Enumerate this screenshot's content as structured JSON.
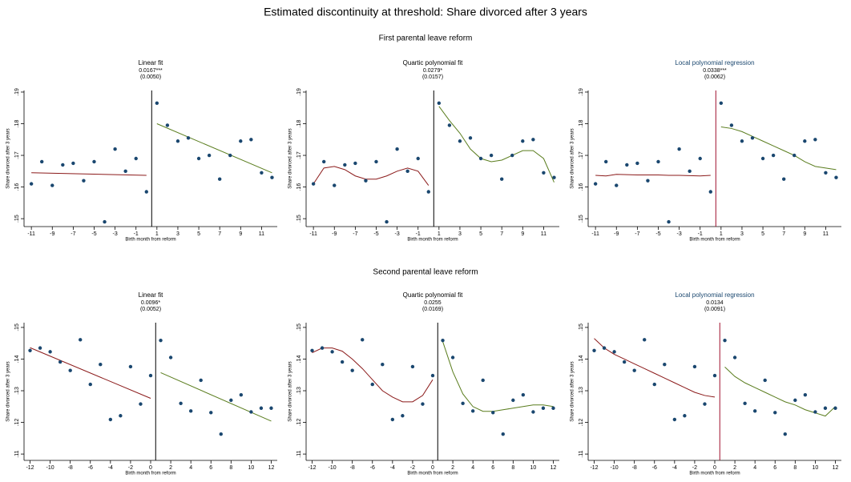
{
  "title": "Estimated discontinuity at threshold: Share divorced after 3 years",
  "sections": [
    "First parental leave reform",
    "Second parental leave reform"
  ],
  "chart_data": [
    {
      "type": "scatter",
      "title": "Linear fit",
      "title_color": "#000000",
      "estimate": "0.0167***",
      "std_error": "(0.0050)",
      "xlabel": "Birth month from reform",
      "ylabel": "Share divorced after 3 years",
      "x": [
        -11,
        -10,
        -9,
        -8,
        -7,
        -6,
        -5,
        -4,
        -3,
        -2,
        -1,
        0,
        1,
        2,
        3,
        4,
        5,
        6,
        7,
        8,
        9,
        10,
        11,
        12
      ],
      "values": [
        0.161,
        0.168,
        0.1605,
        0.167,
        0.1675,
        0.162,
        0.168,
        0.149,
        0.172,
        0.165,
        0.169,
        0.1585,
        0.1865,
        0.1795,
        0.1745,
        0.1755,
        0.169,
        0.17,
        0.1625,
        0.17,
        0.1745,
        0.175,
        0.1645,
        0.163
      ],
      "color": "#1a476f",
      "threshold": 0.5,
      "threshold_color": "#000000",
      "fits": [
        {
          "x": [
            -11,
            0
          ],
          "values": [
            0.1645,
            0.1637
          ],
          "color": "#8b1a1a"
        },
        {
          "x": [
            1,
            12
          ],
          "values": [
            0.18,
            0.1645
          ],
          "color": "#5a7d1e"
        }
      ],
      "xlim": [
        -11.7,
        12.5
      ],
      "ylim": [
        0.1475,
        0.1905
      ],
      "xticks": [
        -11,
        -9,
        -7,
        -5,
        -3,
        -1,
        1,
        3,
        5,
        7,
        9,
        11
      ],
      "yticks": [
        {
          "value": 0.15,
          "label": ".15"
        },
        {
          "value": 0.16,
          "label": ".16"
        },
        {
          "value": 0.17,
          "label": ".17"
        },
        {
          "value": 0.18,
          "label": ".18"
        },
        {
          "value": 0.19,
          "label": ".19"
        }
      ]
    },
    {
      "type": "scatter",
      "title": "Quartic polynomial fit",
      "title_color": "#000000",
      "estimate": "0.0279*",
      "std_error": "(0.0157)",
      "xlabel": "Birth month from reform",
      "ylabel": "Share divorced after 3 years",
      "x": [
        -11,
        -10,
        -9,
        -8,
        -7,
        -6,
        -5,
        -4,
        -3,
        -2,
        -1,
        0,
        1,
        2,
        3,
        4,
        5,
        6,
        7,
        8,
        9,
        10,
        11,
        12
      ],
      "values": [
        0.161,
        0.168,
        0.1605,
        0.167,
        0.1675,
        0.162,
        0.168,
        0.149,
        0.172,
        0.165,
        0.169,
        0.1585,
        0.1865,
        0.1795,
        0.1745,
        0.1755,
        0.169,
        0.17,
        0.1625,
        0.17,
        0.1745,
        0.175,
        0.1645,
        0.163
      ],
      "color": "#1a476f",
      "threshold": 0.5,
      "threshold_color": "#000000",
      "fits": [
        {
          "x": [
            -11,
            -10,
            -9,
            -8,
            -7,
            -6,
            -5,
            -4,
            -3,
            -2,
            -1,
            0
          ],
          "values": [
            0.161,
            0.166,
            0.1665,
            0.1655,
            0.1635,
            0.1625,
            0.1625,
            0.1635,
            0.165,
            0.166,
            0.165,
            0.1605
          ],
          "color": "#8b1a1a"
        },
        {
          "x": [
            1,
            2,
            3,
            4,
            5,
            6,
            7,
            8,
            9,
            10,
            11,
            12
          ],
          "values": [
            0.1855,
            0.181,
            0.177,
            0.172,
            0.169,
            0.168,
            0.1685,
            0.17,
            0.1715,
            0.1715,
            0.169,
            0.1615
          ],
          "color": "#5a7d1e"
        }
      ],
      "xlim": [
        -11.7,
        12.5
      ],
      "ylim": [
        0.1475,
        0.1905
      ],
      "xticks": [
        -11,
        -9,
        -7,
        -5,
        -3,
        -1,
        1,
        3,
        5,
        7,
        9,
        11
      ],
      "yticks": [
        {
          "value": 0.15,
          "label": ".15"
        },
        {
          "value": 0.16,
          "label": ".16"
        },
        {
          "value": 0.17,
          "label": ".17"
        },
        {
          "value": 0.18,
          "label": ".18"
        },
        {
          "value": 0.19,
          "label": ".19"
        }
      ]
    },
    {
      "type": "scatter",
      "title": "Local polynomial regression",
      "title_color": "#1a476f",
      "estimate": "0.0338***",
      "std_error": "(0.0062)",
      "xlabel": "Birth month from reform",
      "ylabel": "Share divorced after 3 years",
      "x": [
        -11,
        -10,
        -9,
        -8,
        -7,
        -6,
        -5,
        -4,
        -3,
        -2,
        -1,
        0,
        1,
        2,
        3,
        4,
        5,
        6,
        7,
        8,
        9,
        10,
        11,
        12
      ],
      "values": [
        0.161,
        0.168,
        0.1605,
        0.167,
        0.1675,
        0.162,
        0.168,
        0.149,
        0.172,
        0.165,
        0.169,
        0.1585,
        0.1865,
        0.1795,
        0.1745,
        0.1755,
        0.169,
        0.17,
        0.1625,
        0.17,
        0.1745,
        0.175,
        0.1645,
        0.163
      ],
      "color": "#1a476f",
      "threshold": 0.5,
      "threshold_color": "#a0102e",
      "fits": [
        {
          "x": [
            -11,
            -10,
            -9,
            -8,
            -7,
            -6,
            -5,
            -4,
            -3,
            -2,
            -1,
            0
          ],
          "values": [
            0.1637,
            0.1635,
            0.164,
            0.1639,
            0.1638,
            0.1638,
            0.1638,
            0.1637,
            0.1637,
            0.1636,
            0.1635,
            0.1637
          ],
          "color": "#8b1a1a"
        },
        {
          "x": [
            1,
            2,
            3,
            4,
            5,
            6,
            7,
            8,
            9,
            10,
            11,
            12
          ],
          "values": [
            0.179,
            0.1785,
            0.1775,
            0.176,
            0.1745,
            0.173,
            0.1715,
            0.17,
            0.168,
            0.1665,
            0.166,
            0.1655
          ],
          "color": "#5a7d1e"
        }
      ],
      "xlim": [
        -11.7,
        12.5
      ],
      "ylim": [
        0.1475,
        0.1905
      ],
      "xticks": [
        -11,
        -9,
        -7,
        -5,
        -3,
        -1,
        1,
        3,
        5,
        7,
        9,
        11
      ],
      "yticks": [
        {
          "value": 0.15,
          "label": ".15"
        },
        {
          "value": 0.16,
          "label": ".16"
        },
        {
          "value": 0.17,
          "label": ".17"
        },
        {
          "value": 0.18,
          "label": ".18"
        },
        {
          "value": 0.19,
          "label": ".19"
        }
      ]
    },
    {
      "type": "scatter",
      "title": "Linear fit",
      "title_color": "#000000",
      "estimate": "0.0096*",
      "std_error": "(0.0052)",
      "xlabel": "Birth month from reform",
      "ylabel": "Share divorced after 3 years",
      "x": [
        -12,
        -11,
        -10,
        -9,
        -8,
        -7,
        -6,
        -5,
        -4,
        -3,
        -2,
        -1,
        0,
        1,
        2,
        3,
        4,
        5,
        6,
        7,
        8,
        9,
        10,
        11,
        12
      ],
      "values": [
        0.1427,
        0.1435,
        0.1423,
        0.1391,
        0.1364,
        0.1461,
        0.132,
        0.1383,
        0.1209,
        0.1221,
        0.1376,
        0.1258,
        0.1348,
        0.1459,
        0.1405,
        0.126,
        0.1236,
        0.1333,
        0.1231,
        0.1163,
        0.127,
        0.1287,
        0.1233,
        0.1245,
        0.1245
      ],
      "color": "#1a476f",
      "threshold": 0.5,
      "threshold_color": "#000000",
      "fits": [
        {
          "x": [
            -12,
            0
          ],
          "values": [
            0.1436,
            0.1276
          ],
          "color": "#8b1a1a"
        },
        {
          "x": [
            1,
            12
          ],
          "values": [
            0.1357,
            0.1204
          ],
          "color": "#5a7d1e"
        }
      ],
      "xlim": [
        -12.6,
        12.6
      ],
      "ylim": [
        0.108,
        0.1515
      ],
      "xticks": [
        -12,
        -10,
        -8,
        -6,
        -4,
        -2,
        0,
        2,
        4,
        6,
        8,
        10,
        12
      ],
      "yticks": [
        {
          "value": 0.11,
          "label": ".11"
        },
        {
          "value": 0.12,
          "label": ".12"
        },
        {
          "value": 0.13,
          "label": ".13"
        },
        {
          "value": 0.14,
          "label": ".14"
        },
        {
          "value": 0.15,
          "label": ".15"
        }
      ]
    },
    {
      "type": "scatter",
      "title": "Quartic polynomial fit",
      "title_color": "#000000",
      "estimate": "0.0255",
      "std_error": "(0.0169)",
      "xlabel": "Birth month from reform",
      "ylabel": "Share divorced after 3 years",
      "x": [
        -12,
        -11,
        -10,
        -9,
        -8,
        -7,
        -6,
        -5,
        -4,
        -3,
        -2,
        -1,
        0,
        1,
        2,
        3,
        4,
        5,
        6,
        7,
        8,
        9,
        10,
        11,
        12
      ],
      "values": [
        0.1427,
        0.1435,
        0.1423,
        0.1391,
        0.1364,
        0.1461,
        0.132,
        0.1383,
        0.1209,
        0.1221,
        0.1376,
        0.1258,
        0.1348,
        0.1459,
        0.1405,
        0.126,
        0.1236,
        0.1333,
        0.1231,
        0.1163,
        0.127,
        0.1287,
        0.1233,
        0.1245,
        0.1245
      ],
      "color": "#1a476f",
      "threshold": 0.5,
      "threshold_color": "#000000",
      "fits": [
        {
          "x": [
            -12,
            -11,
            -10,
            -9,
            -8,
            -7,
            -6,
            -5,
            -4,
            -3,
            -2,
            -1,
            0
          ],
          "values": [
            0.142,
            0.1435,
            0.1435,
            0.1425,
            0.14,
            0.137,
            0.1335,
            0.13,
            0.128,
            0.1265,
            0.1265,
            0.1285,
            0.1335
          ],
          "color": "#8b1a1a"
        },
        {
          "x": [
            1,
            2,
            3,
            4,
            5,
            6,
            7,
            8,
            9,
            10,
            11,
            12
          ],
          "values": [
            0.1455,
            0.136,
            0.129,
            0.125,
            0.1235,
            0.1235,
            0.124,
            0.1245,
            0.125,
            0.1255,
            0.1255,
            0.125
          ],
          "color": "#5a7d1e"
        }
      ],
      "xlim": [
        -12.6,
        12.6
      ],
      "ylim": [
        0.108,
        0.1515
      ],
      "xticks": [
        -12,
        -10,
        -8,
        -6,
        -4,
        -2,
        0,
        2,
        4,
        6,
        8,
        10,
        12
      ],
      "yticks": [
        {
          "value": 0.11,
          "label": ".11"
        },
        {
          "value": 0.12,
          "label": ".12"
        },
        {
          "value": 0.13,
          "label": ".13"
        },
        {
          "value": 0.14,
          "label": ".14"
        },
        {
          "value": 0.15,
          "label": ".15"
        }
      ]
    },
    {
      "type": "scatter",
      "title": "Local polynomial regression",
      "title_color": "#1a476f",
      "estimate": "0.0134",
      "std_error": "(0.0091)",
      "xlabel": "Birth month from reform",
      "ylabel": "Share divorced after 3 years",
      "x": [
        -12,
        -11,
        -10,
        -9,
        -8,
        -7,
        -6,
        -5,
        -4,
        -3,
        -2,
        -1,
        0,
        1,
        2,
        3,
        4,
        5,
        6,
        7,
        8,
        9,
        10,
        11,
        12
      ],
      "values": [
        0.1427,
        0.1435,
        0.1423,
        0.1391,
        0.1364,
        0.1461,
        0.132,
        0.1383,
        0.1209,
        0.1221,
        0.1376,
        0.1258,
        0.1348,
        0.1459,
        0.1405,
        0.126,
        0.1236,
        0.1333,
        0.1231,
        0.1163,
        0.127,
        0.1287,
        0.1233,
        0.1245,
        0.1245
      ],
      "color": "#1a476f",
      "threshold": 0.5,
      "threshold_color": "#a0102e",
      "fits": [
        {
          "x": [
            -12,
            -11,
            -10,
            -9,
            -8,
            -7,
            -6,
            -5,
            -4,
            -3,
            -2,
            -1,
            0
          ],
          "values": [
            0.1465,
            0.1435,
            0.1415,
            0.14,
            0.1385,
            0.137,
            0.1355,
            0.134,
            0.1325,
            0.131,
            0.1295,
            0.1285,
            0.128
          ],
          "color": "#8b1a1a"
        },
        {
          "x": [
            1,
            2,
            3,
            4,
            5,
            6,
            7,
            8,
            9,
            10,
            11,
            12
          ],
          "values": [
            0.1375,
            0.1345,
            0.1325,
            0.131,
            0.1295,
            0.128,
            0.1265,
            0.1255,
            0.124,
            0.123,
            0.122,
            0.125
          ],
          "color": "#5a7d1e"
        }
      ],
      "xlim": [
        -12.6,
        12.6
      ],
      "ylim": [
        0.108,
        0.1515
      ],
      "xticks": [
        -12,
        -10,
        -8,
        -6,
        -4,
        -2,
        0,
        2,
        4,
        6,
        8,
        10,
        12
      ],
      "yticks": [
        {
          "value": 0.11,
          "label": ".11"
        },
        {
          "value": 0.12,
          "label": ".12"
        },
        {
          "value": 0.13,
          "label": ".13"
        },
        {
          "value": 0.14,
          "label": ".14"
        },
        {
          "value": 0.15,
          "label": ".15"
        }
      ]
    }
  ]
}
